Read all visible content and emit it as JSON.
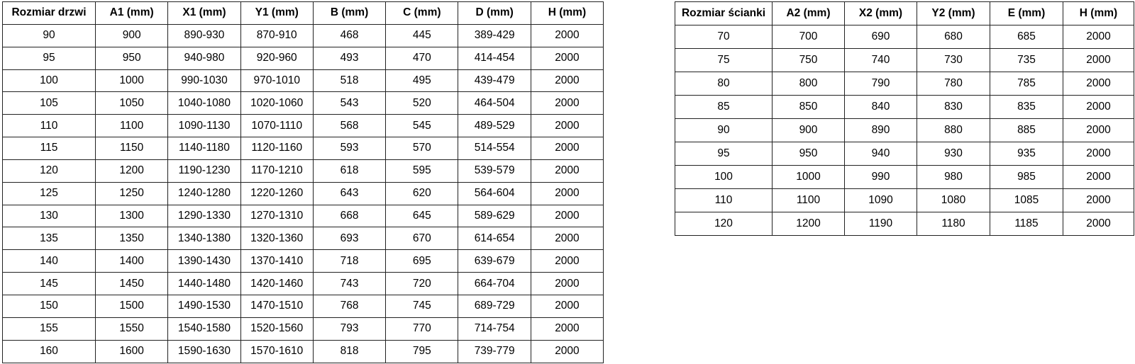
{
  "page": {
    "background_color": "#ffffff",
    "text_color": "#000000",
    "border_color": "#222222"
  },
  "door_table": {
    "title_header": "Rozmiar drzwi",
    "headers": [
      "Rozmiar drzwi",
      "A1 (mm)",
      "X1 (mm)",
      "Y1 (mm)",
      "B (mm)",
      "C (mm)",
      "D (mm)",
      "H (mm)"
    ],
    "rows": [
      [
        "90",
        "900",
        "890-930",
        "870-910",
        "468",
        "445",
        "389-429",
        "2000"
      ],
      [
        "95",
        "950",
        "940-980",
        "920-960",
        "493",
        "470",
        "414-454",
        "2000"
      ],
      [
        "100",
        "1000",
        "990-1030",
        "970-1010",
        "518",
        "495",
        "439-479",
        "2000"
      ],
      [
        "105",
        "1050",
        "1040-1080",
        "1020-1060",
        "543",
        "520",
        "464-504",
        "2000"
      ],
      [
        "110",
        "1100",
        "1090-1130",
        "1070-1110",
        "568",
        "545",
        "489-529",
        "2000"
      ],
      [
        "115",
        "1150",
        "1140-1180",
        "1120-1160",
        "593",
        "570",
        "514-554",
        "2000"
      ],
      [
        "120",
        "1200",
        "1190-1230",
        "1170-1210",
        "618",
        "595",
        "539-579",
        "2000"
      ],
      [
        "125",
        "1250",
        "1240-1280",
        "1220-1260",
        "643",
        "620",
        "564-604",
        "2000"
      ],
      [
        "130",
        "1300",
        "1290-1330",
        "1270-1310",
        "668",
        "645",
        "589-629",
        "2000"
      ],
      [
        "135",
        "1350",
        "1340-1380",
        "1320-1360",
        "693",
        "670",
        "614-654",
        "2000"
      ],
      [
        "140",
        "1400",
        "1390-1430",
        "1370-1410",
        "718",
        "695",
        "639-679",
        "2000"
      ],
      [
        "145",
        "1450",
        "1440-1480",
        "1420-1460",
        "743",
        "720",
        "664-704",
        "2000"
      ],
      [
        "150",
        "1500",
        "1490-1530",
        "1470-1510",
        "768",
        "745",
        "689-729",
        "2000"
      ],
      [
        "155",
        "1550",
        "1540-1580",
        "1520-1560",
        "793",
        "770",
        "714-754",
        "2000"
      ],
      [
        "160",
        "1600",
        "1590-1630",
        "1570-1610",
        "818",
        "795",
        "739-779",
        "2000"
      ]
    ]
  },
  "wall_table": {
    "title_header": "Rozmiar ścianki",
    "headers": [
      "Rozmiar ścianki",
      "A2 (mm)",
      "X2 (mm)",
      "Y2 (mm)",
      "E (mm)",
      "H (mm)"
    ],
    "rows": [
      [
        "70",
        "700",
        "690",
        "680",
        "685",
        "2000"
      ],
      [
        "75",
        "750",
        "740",
        "730",
        "735",
        "2000"
      ],
      [
        "80",
        "800",
        "790",
        "780",
        "785",
        "2000"
      ],
      [
        "85",
        "850",
        "840",
        "830",
        "835",
        "2000"
      ],
      [
        "90",
        "900",
        "890",
        "880",
        "885",
        "2000"
      ],
      [
        "95",
        "950",
        "940",
        "930",
        "935",
        "2000"
      ],
      [
        "100",
        "1000",
        "990",
        "980",
        "985",
        "2000"
      ],
      [
        "110",
        "1100",
        "1090",
        "1080",
        "1085",
        "2000"
      ],
      [
        "120",
        "1200",
        "1190",
        "1180",
        "1185",
        "2000"
      ]
    ]
  }
}
